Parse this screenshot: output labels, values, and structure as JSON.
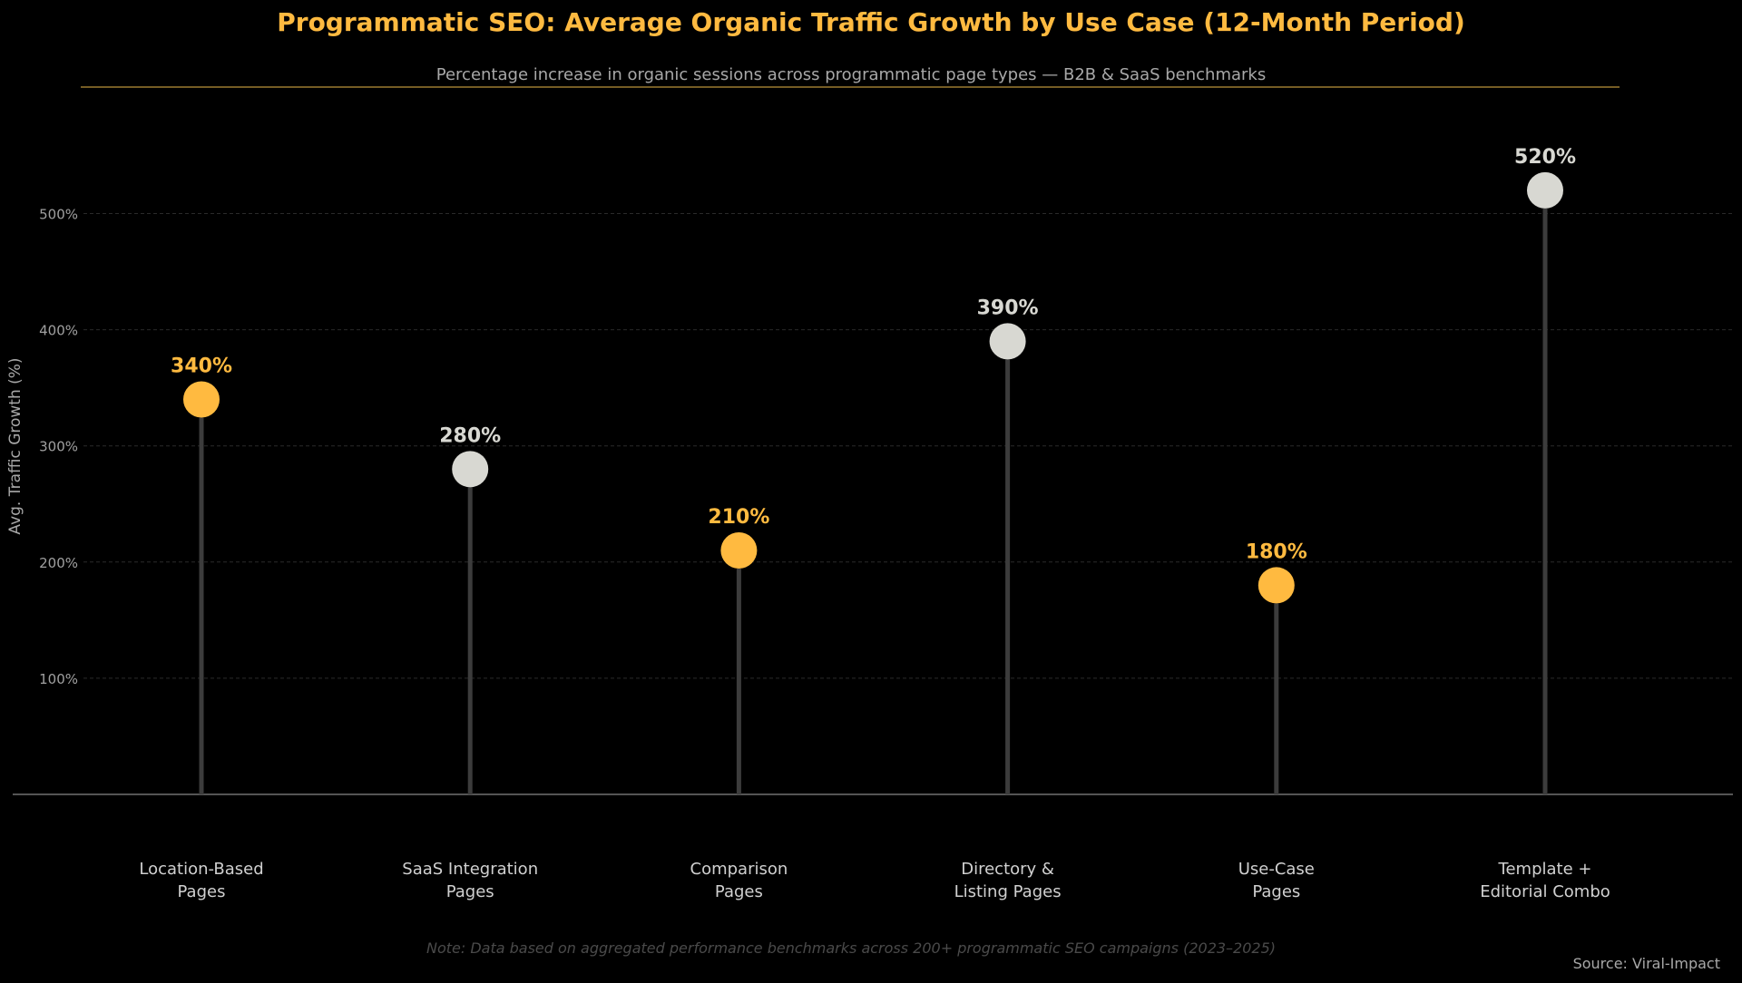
{
  "chart_data": {
    "type": "lollipop",
    "title": "Programmatic SEO: Average Organic Traffic Growth by Use Case (12-Month Period)",
    "subtitle": "Percentage increase in organic sessions across programmatic page types — B2B & SaaS benchmarks",
    "ylabel": "Avg. Traffic Growth (%)",
    "xlabel": "",
    "ylim": [
      0,
      570
    ],
    "yticks": [
      100,
      200,
      300,
      400,
      500
    ],
    "ytick_labels": [
      "100%",
      "200%",
      "300%",
      "400%",
      "500%"
    ],
    "grid": "horizontal dashed",
    "categories": [
      [
        "Location-Based",
        "Pages"
      ],
      [
        "SaaS Integration",
        "Pages"
      ],
      [
        "Comparison",
        "Pages"
      ],
      [
        "Directory &",
        "Listing Pages"
      ],
      [
        "Use-Case",
        "Pages"
      ],
      [
        "Template +",
        "Editorial Combo"
      ]
    ],
    "values": [
      340,
      280,
      210,
      390,
      180,
      520
    ],
    "value_labels": [
      "340%",
      "280%",
      "210%",
      "390%",
      "180%",
      "520%"
    ],
    "highlight": [
      true,
      false,
      true,
      false,
      true,
      false
    ],
    "note": "Note: Data based on aggregated performance benchmarks across 200+ programmatic SEO campaigns (2023–2025)",
    "source": "Source: Viral-Impact"
  },
  "colors": {
    "background": "#000000",
    "accent": "#FFBA40",
    "neutral": "#D8D8D2",
    "stem": "#3C3C3C",
    "grid": "#2A2A2A",
    "axis": "#555555"
  }
}
